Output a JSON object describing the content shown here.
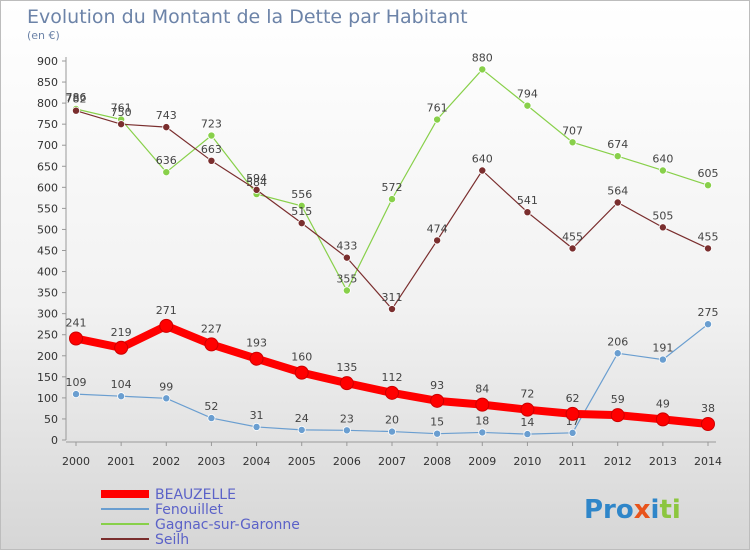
{
  "title": "Evolution du Montant de la Dette par Habitant",
  "subtitle": "(en €)",
  "logo": "Proxiti",
  "chart_data": {
    "type": "line",
    "title": "Evolution du Montant de la Dette par Habitant",
    "subtitle": "(en €)",
    "xlabel": "",
    "ylabel": "",
    "x": [
      "2000",
      "2001",
      "2002",
      "2003",
      "2004",
      "2005",
      "2006",
      "2007",
      "2008",
      "2009",
      "2010",
      "2011",
      "2012",
      "2013",
      "2014"
    ],
    "ylim": [
      0,
      900
    ],
    "yticks": [
      0,
      50,
      100,
      150,
      200,
      250,
      300,
      350,
      400,
      450,
      500,
      550,
      600,
      650,
      700,
      750,
      800,
      850,
      900
    ],
    "grid": false,
    "legend_position": "bottom-left",
    "series": [
      {
        "name": "BEAUZELLE",
        "color": "#ff0000",
        "emphasis": true,
        "values": [
          241,
          219,
          271,
          227,
          193,
          160,
          135,
          112,
          93,
          84,
          72,
          62,
          59,
          49,
          38
        ],
        "labels": [
          "241",
          "219",
          "271",
          "227",
          "193",
          "160",
          "135",
          "112",
          "93",
          "84",
          "72",
          "62",
          "59",
          "49",
          "38"
        ]
      },
      {
        "name": "Fenouillet",
        "color": "#6a9ed0",
        "values": [
          109,
          104,
          99,
          52,
          31,
          24,
          23,
          20,
          15,
          18,
          14,
          17,
          206,
          191,
          275
        ],
        "labels": [
          "109",
          "104",
          "99",
          "52",
          "31",
          "24",
          "23",
          "20",
          "15",
          "18",
          "14",
          "17",
          "206",
          "191",
          "275"
        ]
      },
      {
        "name": "Gagnac-sur-Garonne",
        "color": "#88d04a",
        "values": [
          786,
          761,
          636,
          723,
          584,
          556,
          355,
          572,
          761,
          880,
          794,
          707,
          674,
          640,
          605
        ],
        "labels": [
          "786",
          "761",
          "636",
          "723",
          "584",
          "556",
          "355",
          "572",
          "761",
          "880",
          "794",
          "707",
          "674",
          "640",
          "605"
        ]
      },
      {
        "name": "Seilh",
        "color": "#7a2e2e",
        "values": [
          782,
          750,
          743,
          663,
          594,
          515,
          433,
          311,
          474,
          640,
          541,
          455,
          564,
          505,
          455
        ],
        "labels": [
          "782",
          "750",
          "743",
          "663",
          "594",
          "515",
          "433",
          "311",
          "474",
          "640",
          "541",
          "455",
          "564",
          "505",
          "455"
        ]
      }
    ]
  }
}
